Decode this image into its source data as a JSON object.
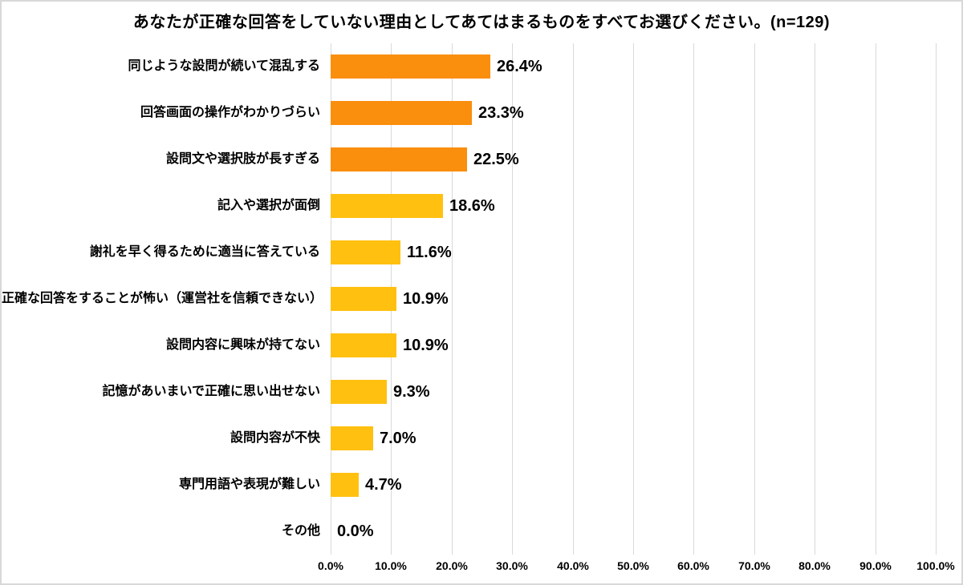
{
  "chart_data": {
    "type": "bar",
    "orientation": "horizontal",
    "title": "あなたが正確な回答をしていない理由としてあてはまるものをすべてお選びください。(n=129)",
    "categories": [
      "同じような設問が続いて混乱する",
      "回答画面の操作がわかりづらい",
      "設問文や選択肢が長すぎる",
      "記入や選択が面倒",
      "謝礼を早く得るために適当に答えている",
      "正確な回答をすることが怖い（運営社を信頼できない）",
      "設問内容に興味が持てない",
      "記憶があいまいで正確に思い出せない",
      "設問内容が不快",
      "専門用語や表現が難しい",
      "その他"
    ],
    "values": [
      26.4,
      23.3,
      22.5,
      18.6,
      11.6,
      10.9,
      10.9,
      9.3,
      7.0,
      4.7,
      0.0
    ],
    "value_labels": [
      "26.4%",
      "23.3%",
      "22.5%",
      "18.6%",
      "11.6%",
      "10.9%",
      "10.9%",
      "9.3%",
      "7.0%",
      "4.7%",
      "0.0%"
    ],
    "bar_colors": [
      "#fa8e0d",
      "#fa8e0d",
      "#fa8e0d",
      "#ffc010",
      "#ffc010",
      "#ffc010",
      "#ffc010",
      "#ffc010",
      "#ffc010",
      "#ffc010",
      "#ffc010"
    ],
    "x_ticks": [
      "0.0%",
      "10.0%",
      "20.0%",
      "30.0%",
      "40.0%",
      "50.0%",
      "60.0%",
      "70.0%",
      "80.0%",
      "90.0%",
      "100.0%"
    ],
    "xlim": [
      0,
      100
    ],
    "grid": true,
    "gridline_color": "#d9d9d9",
    "colors": {
      "orange": "#fa8e0d",
      "yellow": "#ffc010",
      "text": "#000000",
      "frame_border": "#d8d8d8"
    },
    "legend": "none"
  }
}
